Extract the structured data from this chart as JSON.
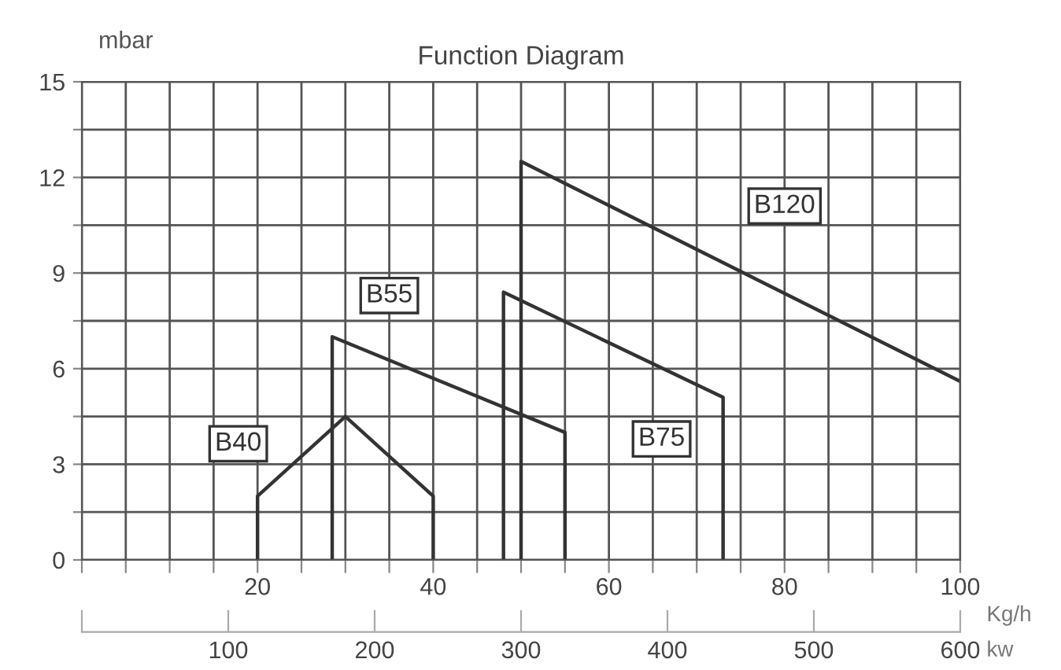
{
  "chart_data": {
    "type": "line",
    "title": "Function Diagram",
    "ylabel": "mbar",
    "xlabel": "Kg/h",
    "x2label": "kw",
    "series": [
      {
        "name": "B40",
        "color": "#333333",
        "x": [
          20,
          20,
          30,
          40,
          40
        ],
        "values": [
          0,
          2,
          4.5,
          2,
          0
        ]
      },
      {
        "name": "B55",
        "color": "#333333",
        "x": [
          28.5,
          28.5,
          55,
          55
        ],
        "values": [
          0,
          7,
          4,
          0
        ]
      },
      {
        "name": "B75",
        "color": "#333333",
        "x": [
          48,
          48,
          73,
          73
        ],
        "values": [
          0,
          8.4,
          5.1,
          0
        ]
      },
      {
        "name": "B120",
        "color": "#333333",
        "x": [
          50,
          50,
          100
        ],
        "values": [
          0,
          12.5,
          5.6
        ]
      }
    ],
    "xlim": [
      0,
      100
    ],
    "xticks": [
      {
        "value": 0,
        "label": null
      },
      {
        "value": 5,
        "label": null
      },
      {
        "value": 10,
        "label": null
      },
      {
        "value": 15,
        "label": null
      },
      20,
      {
        "value": 25,
        "label": null
      },
      {
        "value": 30,
        "label": null
      },
      {
        "value": 35,
        "label": null
      },
      40,
      {
        "value": 45,
        "label": null
      },
      {
        "value": 50,
        "label": null
      },
      {
        "value": 55,
        "label": null
      },
      60,
      {
        "value": 65,
        "label": null
      },
      {
        "value": 70,
        "label": null
      },
      {
        "value": 75,
        "label": null
      },
      80,
      {
        "value": 85,
        "label": null
      },
      {
        "value": 90,
        "label": null
      },
      {
        "value": 95,
        "label": null
      },
      100
    ],
    "x2lim": [
      0,
      600
    ],
    "x2ticks": [
      {
        "value": 0,
        "label": null
      },
      100,
      200,
      300,
      400,
      500,
      600
    ],
    "ylim": [
      0,
      15
    ],
    "yticks": [
      0,
      {
        "value": 1.5,
        "label": null
      },
      3,
      {
        "value": 4.5,
        "label": null
      },
      6,
      {
        "value": 7.5,
        "label": null
      },
      9,
      {
        "value": 10.5,
        "label": null
      },
      12,
      {
        "value": 13.5,
        "label": null
      },
      15
    ],
    "grid": true,
    "marker": "none",
    "line_style": "solid"
  }
}
